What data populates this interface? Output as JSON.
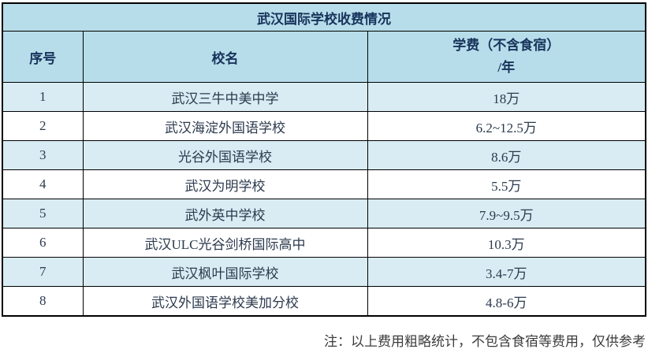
{
  "table": {
    "title": "武汉国际学校收费情况",
    "header": {
      "no": "序号",
      "school": "校名",
      "fee_line1": "学费（不含食宿）",
      "fee_line2": "/年"
    },
    "rows": [
      {
        "no": "1",
        "school": "武汉三牛中美中学",
        "fee": "18万"
      },
      {
        "no": "2",
        "school": "武汉海淀外国语学校",
        "fee": "6.2~12.5万"
      },
      {
        "no": "3",
        "school": "光谷外国语学校",
        "fee": "8.6万"
      },
      {
        "no": "4",
        "school": "武汉为明学校",
        "fee": "5.5万"
      },
      {
        "no": "5",
        "school": "武外英中学校",
        "fee": "7.9~9.5万"
      },
      {
        "no": "6",
        "school": "武汉ULC光谷剑桥国际高中",
        "fee": "10.3万"
      },
      {
        "no": "7",
        "school": "武汉枫叶国际学校",
        "fee": "3.4-7万"
      },
      {
        "no": "8",
        "school": "武汉外国语学校美加分校",
        "fee": "4.8-6万"
      }
    ],
    "note": "注：以上费用粗略统计，不包含食宿等费用，仅供参考"
  },
  "colors": {
    "header_bg": "#b6dde9",
    "alt_row_bg": "#d9ecf3",
    "row_bg": "#ffffff",
    "border": "#000000",
    "header_text": "#18335c",
    "cell_text": "#2c3a4e",
    "note_text": "#3c3c3c"
  },
  "chart_data": {
    "type": "table",
    "title": "武汉国际学校收费情况",
    "columns": [
      "序号",
      "校名",
      "学费（不含食宿）/年"
    ],
    "rows": [
      [
        "1",
        "武汉三牛中美中学",
        "18万"
      ],
      [
        "2",
        "武汉海淀外国语学校",
        "6.2~12.5万"
      ],
      [
        "3",
        "光谷外国语学校",
        "8.6万"
      ],
      [
        "4",
        "武汉为明学校",
        "5.5万"
      ],
      [
        "5",
        "武外英中学校",
        "7.9~9.5万"
      ],
      [
        "6",
        "武汉ULC光谷剑桥国际高中",
        "10.3万"
      ],
      [
        "7",
        "武汉枫叶国际学校",
        "3.4-7万"
      ],
      [
        "8",
        "武汉外国语学校美加分校",
        "4.8-6万"
      ]
    ],
    "fees_wan_numeric": [
      {
        "school": "武汉三牛中美中学",
        "min": 18,
        "max": 18
      },
      {
        "school": "武汉海淀外国语学校",
        "min": 6.2,
        "max": 12.5
      },
      {
        "school": "光谷外国语学校",
        "min": 8.6,
        "max": 8.6
      },
      {
        "school": "武汉为明学校",
        "min": 5.5,
        "max": 5.5
      },
      {
        "school": "武外英中学校",
        "min": 7.9,
        "max": 9.5
      },
      {
        "school": "武汉ULC光谷剑桥国际高中",
        "min": 10.3,
        "max": 10.3
      },
      {
        "school": "武汉枫叶国际学校",
        "min": 3.4,
        "max": 7
      },
      {
        "school": "武汉外国语学校美加分校",
        "min": 4.8,
        "max": 6
      }
    ],
    "note": "注：以上费用粗略统计，不包含食宿等费用，仅供参考"
  }
}
